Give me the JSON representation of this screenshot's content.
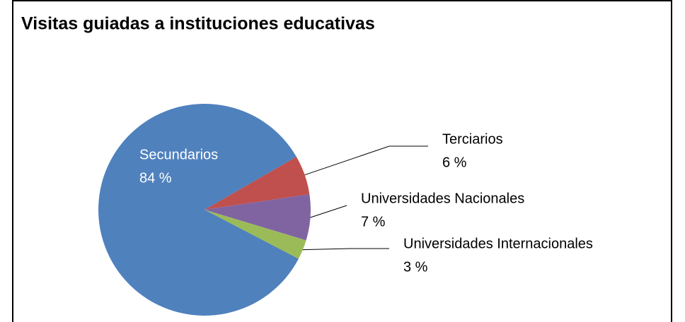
{
  "chart_data": {
    "type": "pie",
    "title": "Visitas guiadas a instituciones educativas",
    "categories": [
      "Terciarios",
      "Universidades Nacionales",
      "Universidades Internacionales",
      "Secundarios"
    ],
    "values": [
      6,
      7,
      3,
      84
    ],
    "value_labels": [
      "6 %",
      "7 %",
      "3 %",
      "84 %"
    ],
    "colors": [
      "#c0504d",
      "#8064a2",
      "#9bbb59",
      "#4f81bd"
    ]
  }
}
